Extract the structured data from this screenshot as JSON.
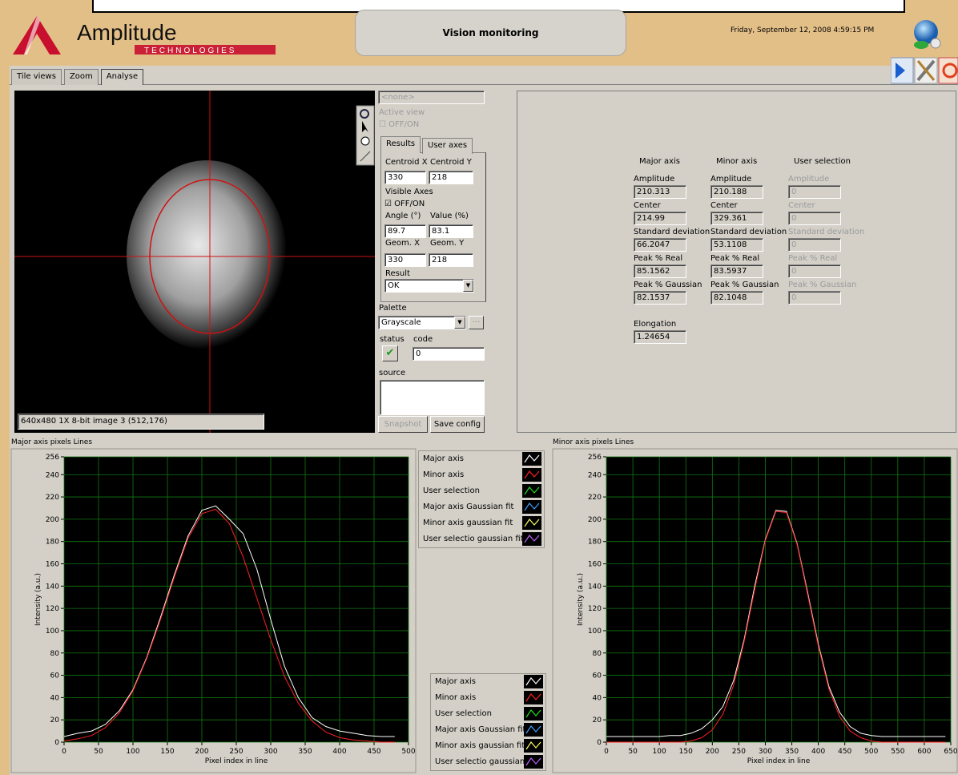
{
  "header": {
    "logo": "Amplitude",
    "logo_sub": "TECHNOLOGIES",
    "title": "Vision monitoring",
    "datetime": "Friday, September 12, 2008 4:59:15 PM"
  },
  "tabs": [
    "Tile views",
    "Zoom",
    "Analyse"
  ],
  "image_view": {
    "status": "640x480 1X 8-bit image 3   (512,176)"
  },
  "controls": {
    "view_select": "<none>",
    "active_view": "Active view",
    "active_toggle": "OFF/ON",
    "tabs": [
      "Results",
      "User axes"
    ],
    "centroid_x_label": "Centroid X",
    "centroid_y_label": "Centroid Y",
    "centroid_x": 330,
    "centroid_y": 218,
    "visible_axes": "Visible Axes",
    "visible_toggle": "OFF/ON",
    "angle_label": "Angle (°)",
    "value_label": "Value (%)",
    "angle": 89.7,
    "value": 83.1,
    "geom_x_label": "Geom. X",
    "geom_y_label": "Geom. Y",
    "geom_x": 330,
    "geom_y": 218,
    "result_label": "Result",
    "result": "OK",
    "palette_label": "Palette",
    "palette": "Grayscale",
    "status_label": "status",
    "code_label": "code",
    "code": 0,
    "source_label": "source",
    "snapshot": "Snapshot",
    "save_config": "Save config"
  },
  "results": {
    "columns": [
      "Major axis",
      "Minor axis",
      "User selection"
    ],
    "fields": [
      {
        "label": "Amplitude",
        "values": [
          210.313,
          210.188,
          0
        ]
      },
      {
        "label": "Center",
        "values": [
          214.99,
          329.361,
          0
        ]
      },
      {
        "label": "Standard deviation",
        "values": [
          66.2047,
          53.1108,
          0
        ]
      },
      {
        "label": "Peak % Real",
        "values": [
          85.1562,
          83.5937,
          0
        ]
      },
      {
        "label": "Peak % Gaussian",
        "values": [
          82.1537,
          82.1048,
          0
        ]
      }
    ],
    "elongation_label": "Elongation",
    "elongation": 1.24654
  },
  "chart_data": [
    {
      "type": "line",
      "title": "Major axis pixels Lines",
      "x_label": "Pixel index in line",
      "y_label": "Intensity (a.u.)",
      "x": [
        0,
        20,
        40,
        60,
        80,
        100,
        120,
        140,
        160,
        180,
        200,
        220,
        240,
        260,
        280,
        300,
        320,
        340,
        360,
        380,
        400,
        420,
        440,
        460,
        480
      ],
      "series": [
        {
          "name": "Major axis",
          "color": "#ffffff",
          "values": [
            5,
            8,
            10,
            16,
            28,
            47,
            76,
            112,
            150,
            185,
            208,
            212,
            200,
            187,
            155,
            110,
            68,
            40,
            22,
            14,
            10,
            8,
            6,
            5,
            5
          ]
        },
        {
          "name": "Minor axis",
          "color": "#ff2020",
          "values": [
            1,
            3,
            6,
            13,
            26,
            46,
            75,
            110,
            148,
            183,
            205,
            209,
            196,
            166,
            129,
            92,
            59,
            35,
            19,
            9,
            4,
            2,
            1,
            0,
            0
          ]
        },
        {
          "name": "User selection",
          "color": "#20e020",
          "values": [
            null,
            null,
            null,
            null,
            null,
            null,
            null,
            null,
            null,
            null,
            null,
            null,
            null,
            null,
            null,
            null,
            null,
            null,
            null,
            null,
            null,
            null,
            null,
            null,
            null
          ]
        },
        {
          "name": "Major axis Gaussian fit",
          "color": "#40a0ff",
          "values": [
            null,
            null,
            null,
            null,
            null,
            null,
            null,
            null,
            null,
            null,
            null,
            null,
            null,
            null,
            null,
            null,
            null,
            null,
            null,
            null,
            null,
            null,
            null,
            null,
            null
          ]
        },
        {
          "name": "Minor axis gaussian fit",
          "color": "#ffff60",
          "values": [
            null,
            null,
            null,
            null,
            null,
            null,
            null,
            null,
            null,
            null,
            null,
            null,
            null,
            null,
            null,
            null,
            null,
            null,
            null,
            null,
            null,
            null,
            null,
            null,
            null
          ]
        },
        {
          "name": "User selectio gaussian fit",
          "color": "#c060ff",
          "values": [
            null,
            null,
            null,
            null,
            null,
            null,
            null,
            null,
            null,
            null,
            null,
            null,
            null,
            null,
            null,
            null,
            null,
            null,
            null,
            null,
            null,
            null,
            null,
            null,
            null
          ]
        }
      ],
      "xlim": [
        0,
        500
      ],
      "ylim": [
        0,
        256
      ],
      "xticks": [
        0,
        50,
        100,
        150,
        200,
        250,
        300,
        350,
        400,
        450,
        500
      ],
      "yticks": [
        0,
        20,
        40,
        60,
        80,
        100,
        120,
        140,
        160,
        180,
        200,
        220,
        240,
        256
      ],
      "grid": true
    },
    {
      "type": "line",
      "title": "Minor axis pixels Lines",
      "x_label": "Pixel index in line",
      "y_label": "Intensity (a.u.)",
      "x": [
        0,
        20,
        40,
        60,
        80,
        100,
        120,
        140,
        160,
        180,
        200,
        220,
        240,
        260,
        280,
        300,
        320,
        340,
        360,
        380,
        400,
        420,
        440,
        460,
        480,
        500,
        520,
        540,
        560,
        580,
        600,
        620,
        640
      ],
      "series": [
        {
          "name": "Major axis",
          "color": "#ffffff",
          "values": [
            5,
            5,
            5,
            5,
            5,
            5,
            6,
            6,
            8,
            12,
            20,
            32,
            55,
            92,
            140,
            182,
            208,
            207,
            178,
            134,
            88,
            50,
            27,
            14,
            8,
            6,
            5,
            5,
            5,
            5,
            5,
            5,
            5
          ]
        },
        {
          "name": "Minor axis",
          "color": "#ff2020",
          "values": [
            0,
            0,
            0,
            0,
            0,
            0,
            0,
            0,
            1,
            4,
            11,
            25,
            51,
            90,
            137,
            181,
            207,
            206,
            177,
            132,
            86,
            48,
            23,
            10,
            4,
            1,
            0,
            0,
            0,
            0,
            0,
            0,
            0
          ]
        },
        {
          "name": "User selection",
          "color": "#20e020",
          "values": [
            null,
            null,
            null,
            null,
            null,
            null,
            null,
            null,
            null,
            null,
            null,
            null,
            null,
            null,
            null,
            null,
            null,
            null,
            null,
            null,
            null,
            null,
            null,
            null,
            null,
            null,
            null,
            null,
            null,
            null,
            null,
            null,
            null
          ]
        },
        {
          "name": "Major axis Gaussian fit",
          "color": "#40a0ff",
          "values": [
            null,
            null,
            null,
            null,
            null,
            null,
            null,
            null,
            null,
            null,
            null,
            null,
            null,
            null,
            null,
            null,
            null,
            null,
            null,
            null,
            null,
            null,
            null,
            null,
            null,
            null,
            null,
            null,
            null,
            null,
            null,
            null,
            null
          ]
        },
        {
          "name": "Minor axis gaussian fit",
          "color": "#ffff60",
          "values": [
            null,
            null,
            null,
            null,
            null,
            null,
            null,
            null,
            null,
            null,
            null,
            null,
            null,
            null,
            null,
            null,
            null,
            null,
            null,
            null,
            null,
            null,
            null,
            null,
            null,
            null,
            null,
            null,
            null,
            null,
            null,
            null,
            null
          ]
        },
        {
          "name": "User selectio gaussian fit",
          "color": "#c060ff",
          "values": [
            null,
            null,
            null,
            null,
            null,
            null,
            null,
            null,
            null,
            null,
            null,
            null,
            null,
            null,
            null,
            null,
            null,
            null,
            null,
            null,
            null,
            null,
            null,
            null,
            null,
            null,
            null,
            null,
            null,
            null,
            null,
            null,
            null
          ]
        }
      ],
      "xlim": [
        0,
        650
      ],
      "ylim": [
        0,
        256
      ],
      "xticks": [
        0,
        50,
        100,
        150,
        200,
        250,
        300,
        350,
        400,
        450,
        500,
        550,
        600,
        650
      ],
      "yticks": [
        0,
        20,
        40,
        60,
        80,
        100,
        120,
        140,
        160,
        180,
        200,
        220,
        240,
        256
      ],
      "grid": true
    }
  ]
}
